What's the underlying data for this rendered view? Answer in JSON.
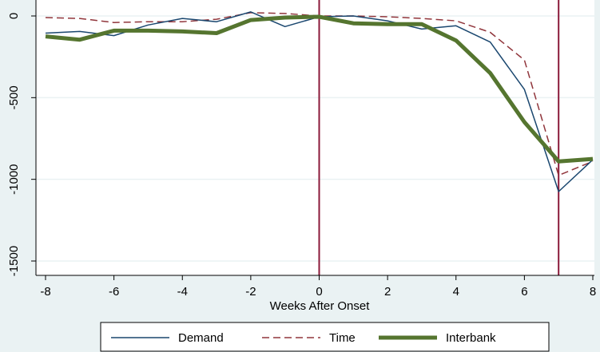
{
  "chart_data": {
    "type": "line",
    "title": "",
    "xlabel": "Weeks After Onset",
    "ylabel": "",
    "xlim": [
      -8,
      8
    ],
    "ylim": [
      -1500,
      0
    ],
    "x_ticks": [
      -8,
      -6,
      -4,
      -2,
      0,
      2,
      4,
      6,
      8
    ],
    "y_ticks": [
      0,
      -500,
      -1000,
      -1500
    ],
    "grid": true,
    "legend_position": "bottom",
    "background_color": "#eaf2f3",
    "plot_background_color": "#ffffff",
    "gridline_color": "#eaf2f3",
    "x": [
      -8,
      -7,
      -6,
      -5,
      -4,
      -3,
      -2,
      -1,
      0,
      1,
      2,
      3,
      4,
      5,
      6,
      7,
      8
    ],
    "series": [
      {
        "name": "Demand",
        "color": "#1a476f",
        "style": "solid-thin",
        "values": [
          -105,
          -95,
          -120,
          -55,
          -15,
          -35,
          25,
          -65,
          -5,
          0,
          -30,
          -80,
          -60,
          -160,
          -450,
          -1075,
          -880
        ]
      },
      {
        "name": "Time",
        "color": "#90353b",
        "style": "dashed",
        "values": [
          -10,
          -15,
          -40,
          -35,
          -35,
          -20,
          20,
          15,
          0,
          0,
          -5,
          -15,
          -30,
          -100,
          -270,
          -975,
          -890
        ]
      },
      {
        "name": "Interbank",
        "color": "#55752f",
        "style": "solid-thick",
        "values": [
          -125,
          -145,
          -90,
          -90,
          -95,
          -105,
          -25,
          -10,
          -5,
          -45,
          -50,
          -50,
          -150,
          -350,
          -650,
          -890,
          -875
        ]
      }
    ],
    "reference_lines_x": [
      0,
      7
    ],
    "reference_line_color": "#8b1a3a"
  }
}
